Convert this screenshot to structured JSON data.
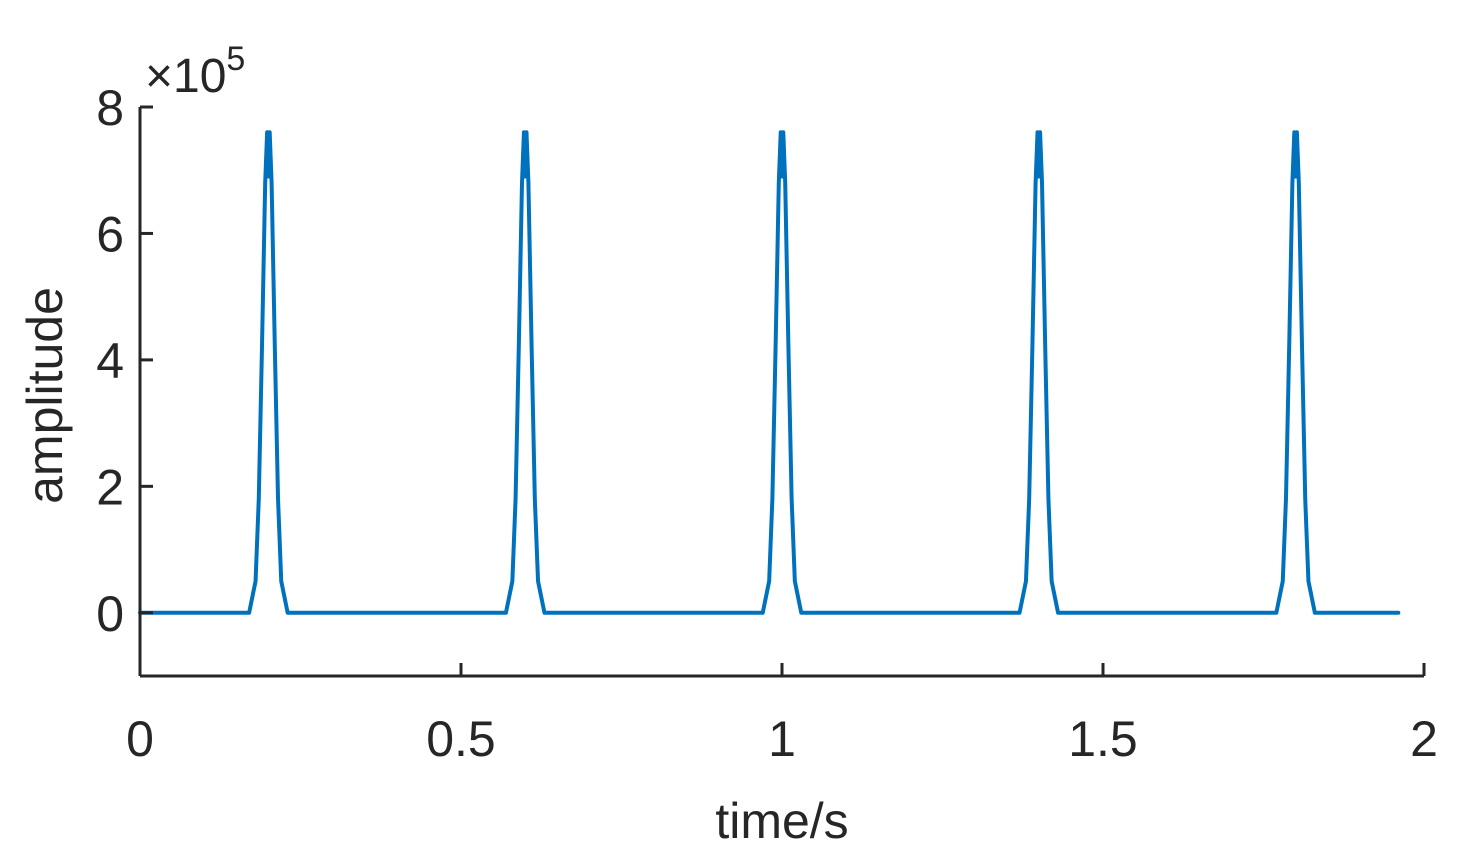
{
  "chart_data": {
    "type": "line",
    "title": "",
    "xlabel": "time/s",
    "ylabel": "amplitude",
    "xlim": [
      0,
      2
    ],
    "ylim": [
      -100000,
      800000
    ],
    "y_exponent_label": {
      "base": "×10",
      "power": "5"
    },
    "x_ticks": [
      {
        "value": 0,
        "label": "0"
      },
      {
        "value": 0.5,
        "label": "0.5"
      },
      {
        "value": 1,
        "label": "1"
      },
      {
        "value": 1.5,
        "label": "1.5"
      },
      {
        "value": 2,
        "label": "2"
      }
    ],
    "y_ticks": [
      {
        "value": 0,
        "label": "0"
      },
      {
        "value": 200000,
        "label": "2"
      },
      {
        "value": 400000,
        "label": "4"
      },
      {
        "value": 600000,
        "label": "6"
      },
      {
        "value": 800000,
        "label": "8"
      }
    ],
    "grid": false,
    "line_color": "#0072BD",
    "axis_color": "#262626",
    "series": [
      {
        "name": "",
        "x": [
          0,
          0.17,
          0.18,
          0.185,
          0.19,
          0.195,
          0.198,
          0.2,
          0.202,
          0.205,
          0.21,
          0.215,
          0.22,
          0.23,
          0.57,
          0.58,
          0.585,
          0.59,
          0.595,
          0.598,
          0.6,
          0.602,
          0.605,
          0.61,
          0.615,
          0.62,
          0.63,
          0.97,
          0.98,
          0.985,
          0.99,
          0.995,
          0.998,
          1.0,
          1.002,
          1.005,
          1.01,
          1.015,
          1.02,
          1.03,
          1.37,
          1.38,
          1.385,
          1.39,
          1.395,
          1.398,
          1.4,
          1.402,
          1.405,
          1.41,
          1.415,
          1.42,
          1.43,
          1.77,
          1.78,
          1.785,
          1.79,
          1.795,
          1.798,
          1.8,
          1.802,
          1.805,
          1.81,
          1.815,
          1.82,
          1.83,
          1.96
        ],
        "y": [
          0,
          0,
          50000,
          180000,
          420000,
          680000,
          760000,
          690000,
          760000,
          680000,
          420000,
          180000,
          50000,
          0,
          0,
          50000,
          180000,
          420000,
          680000,
          760000,
          690000,
          760000,
          680000,
          420000,
          180000,
          50000,
          0,
          0,
          50000,
          180000,
          420000,
          680000,
          760000,
          690000,
          760000,
          680000,
          420000,
          180000,
          50000,
          0,
          0,
          50000,
          180000,
          420000,
          680000,
          760000,
          690000,
          760000,
          680000,
          420000,
          180000,
          50000,
          0,
          0,
          50000,
          180000,
          420000,
          680000,
          760000,
          690000,
          760000,
          680000,
          420000,
          180000,
          50000,
          0,
          0
        ]
      }
    ]
  }
}
